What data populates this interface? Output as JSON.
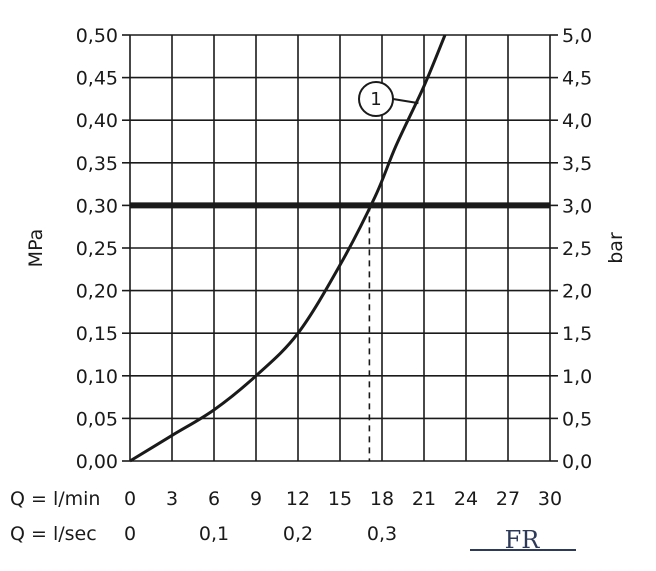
{
  "chart_data": {
    "type": "line",
    "title": "",
    "y_left": {
      "label": "MPa",
      "range": [
        0,
        0.5
      ],
      "ticks": [
        "0,00",
        "0,05",
        "0,10",
        "0,15",
        "0,20",
        "0,25",
        "0,30",
        "0,35",
        "0,40",
        "0,45",
        "0,50"
      ]
    },
    "y_right": {
      "label": "bar",
      "range": [
        0,
        5
      ],
      "ticks": [
        "0,0",
        "0,5",
        "1,0",
        "1,5",
        "2,0",
        "2,5",
        "3,0",
        "3,5",
        "4,0",
        "4,5",
        "5,0"
      ]
    },
    "x_axis_lmin": {
      "prefix": "Q = l/min",
      "range": [
        0,
        30
      ],
      "ticks": [
        "0",
        "3",
        "6",
        "9",
        "12",
        "15",
        "18",
        "21",
        "24",
        "27",
        "30"
      ]
    },
    "x_axis_lsec": {
      "prefix": "Q = l/sec",
      "ticks": [
        {
          "label": "0",
          "value": 0
        },
        {
          "label": "0,1",
          "value": 0.1
        },
        {
          "label": "0,2",
          "value": 0.2
        },
        {
          "label": "0,3",
          "value": 0.3
        }
      ]
    },
    "grid": true,
    "series": [
      {
        "callout": "1",
        "x": [
          0,
          3,
          6,
          9,
          12,
          15,
          17.5,
          19,
          21,
          22.5
        ],
        "y": [
          0.0,
          0.03,
          0.06,
          0.1,
          0.15,
          0.23,
          0.31,
          0.37,
          0.44,
          0.5
        ]
      }
    ],
    "reference_line": {
      "y": 0.3
    },
    "intersection": {
      "x": 17.1,
      "y": 0.3
    },
    "colors": {
      "line": "#1a1a1a",
      "grid": "#1a1a1a",
      "logo": "#2d3a5a"
    }
  },
  "logo": {
    "text": "FR"
  }
}
